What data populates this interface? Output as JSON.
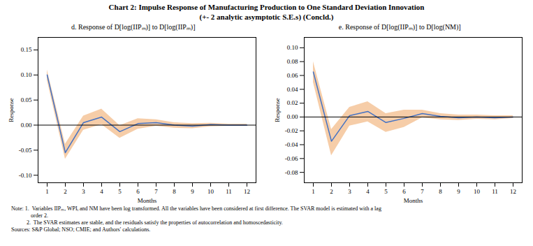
{
  "title": "Chart 2: Impulse Response of Manufacturing Production to One Standard Deviation Innovation",
  "subtitle": "(+- 2 analytic asymptotic S.E.s) (Concld.)",
  "annotations": [
    "Note: 1.  Variables IIPₘ, WPIᵢ and NM have been log transformed. All the variables have been considered at first difference. The SVAR model is estimated with a lag\n              order 2.\n           2.  The SVAR estimates are stable, and the residuals satisfy the properties of autocorrelation and homoscedasticity.",
    "Sources: S&P Global; NSO; CMIE; and Authors' calculations."
  ],
  "chart_data": [
    {
      "type": "line",
      "title": "d. Response of D[log(IIPₘ)] to D[log(IIPₘ)]",
      "x_label": "Months",
      "y_label": "Response",
      "x": [
        1,
        2,
        3,
        4,
        5,
        6,
        7,
        8,
        9,
        10,
        11,
        12
      ],
      "series": [
        {
          "type": "area",
          "color": "#F4C499",
          "upper": [
            0.11,
            -0.038,
            0.018,
            0.032,
            -0.001,
            0.013,
            0.011,
            0.005,
            0.003,
            0.004,
            0.002,
            0.002
          ],
          "lower": [
            0.09,
            -0.068,
            -0.01,
            0.001,
            -0.026,
            -0.008,
            -0.002,
            -0.006,
            -0.007,
            -0.003,
            -0.002,
            -0.002
          ]
        },
        {
          "type": "line",
          "color": "#4472C4",
          "values": [
            0.1,
            -0.055,
            0.005,
            0.016,
            -0.013,
            0.003,
            0.005,
            0.0,
            -0.002,
            0.001,
            0.0,
            0.0
          ]
        }
      ],
      "reference_lines": [
        {
          "y": 0,
          "color": "black"
        }
      ],
      "xlim": [
        0.5,
        12.5
      ],
      "xticks": [
        1,
        2,
        3,
        4,
        5,
        6,
        7,
        8,
        9,
        10,
        11,
        12
      ],
      "ylim": [
        -0.115,
        0.175
      ],
      "yticks": [
        {
          "value": -0.1,
          "label": "-0.10"
        },
        {
          "value": -0.05,
          "label": "-0.05"
        },
        {
          "value": 0.0,
          "label": "0.00"
        },
        {
          "value": 0.05,
          "label": "0.05"
        },
        {
          "value": 0.1,
          "label": "0.10"
        },
        {
          "value": 0.15,
          "label": "0.15"
        }
      ],
      "grid": false
    },
    {
      "type": "line",
      "title": "e. Response of D[log(IIPₘ)] to D[log(NM)]",
      "x_label": "Months",
      "y_label": "Response",
      "x": [
        1,
        2,
        3,
        4,
        5,
        6,
        7,
        8,
        9,
        10,
        11,
        12
      ],
      "series": [
        {
          "type": "area",
          "color": "#F4C499",
          "upper": [
            0.08,
            -0.018,
            0.014,
            0.022,
            0.005,
            0.01,
            0.01,
            0.005,
            0.003,
            0.003,
            0.002,
            0.002
          ],
          "lower": [
            0.05,
            -0.056,
            -0.013,
            -0.007,
            -0.022,
            -0.015,
            -0.001,
            -0.004,
            -0.005,
            -0.003,
            -0.004,
            -0.002
          ]
        },
        {
          "type": "line",
          "color": "#4472C4",
          "values": [
            0.065,
            -0.035,
            0.002,
            0.008,
            -0.008,
            -0.002,
            0.005,
            0.001,
            -0.001,
            0.0,
            -0.001,
            0.0
          ]
        }
      ],
      "reference_lines": [
        {
          "y": 0,
          "color": "black"
        }
      ],
      "xlim": [
        0.5,
        12.5
      ],
      "xticks": [
        1,
        2,
        3,
        4,
        5,
        6,
        7,
        8,
        9,
        10,
        11,
        12
      ],
      "ylim": [
        -0.095,
        0.115
      ],
      "yticks": [
        {
          "value": -0.08,
          "label": "-0.08"
        },
        {
          "value": -0.06,
          "label": "-0.06"
        },
        {
          "value": -0.04,
          "label": "-0.04"
        },
        {
          "value": -0.02,
          "label": "-0.02"
        },
        {
          "value": 0.0,
          "label": "0.00"
        },
        {
          "value": 0.02,
          "label": "0.02"
        },
        {
          "value": 0.04,
          "label": "0.04"
        },
        {
          "value": 0.06,
          "label": "0.06"
        },
        {
          "value": 0.08,
          "label": "0.08"
        },
        {
          "value": 0.1,
          "label": "0.10"
        }
      ],
      "grid": false
    }
  ]
}
